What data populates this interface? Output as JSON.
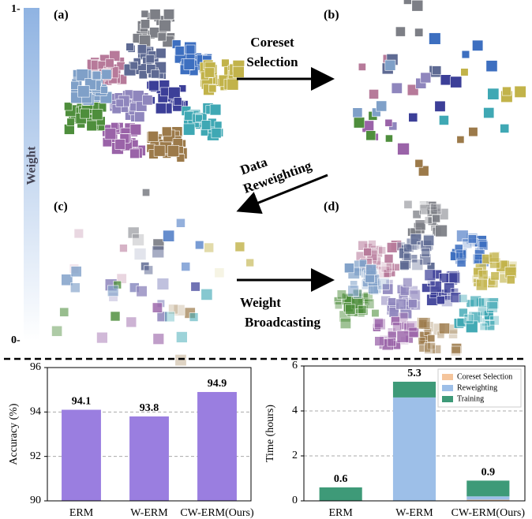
{
  "diagram": {
    "panels": [
      "(a)",
      "(b)",
      "(c)",
      "(d)"
    ],
    "weight_axis": {
      "label": "Weight",
      "top": "1-",
      "bottom": "0-"
    },
    "arrows": [
      {
        "lines": [
          "Coreset",
          "Selection"
        ]
      },
      {
        "lines": [
          "Data",
          "Reweighting"
        ]
      },
      {
        "lines": [
          "Weight",
          "Broadcasting"
        ]
      }
    ]
  },
  "chart_data": [
    {
      "type": "bar",
      "ylabel": "Accuracy (%)",
      "categories": [
        "ERM",
        "W-ERM",
        "CW-ERM(Ours)"
      ],
      "values": [
        94.1,
        93.8,
        94.9
      ],
      "color": "#9a7ee0",
      "ylim": [
        90,
        96
      ],
      "yticks": [
        90,
        92,
        94,
        96
      ],
      "grid": true
    },
    {
      "type": "stacked_bar",
      "ylabel": "Time (hours)",
      "categories": [
        "ERM",
        "W-ERM",
        "CW-ERM(Ours)"
      ],
      "series": [
        {
          "name": "Coreset Selection",
          "color": "#f5c59c",
          "values": [
            0,
            0,
            0.05
          ]
        },
        {
          "name": "Reweighting",
          "color": "#9dbfe8",
          "values": [
            0,
            4.6,
            0.15
          ]
        },
        {
          "name": "Training",
          "color": "#3e9a78",
          "values": [
            0.6,
            0.7,
            0.7
          ]
        }
      ],
      "total_labels": [
        "0.6",
        "5.3",
        "0.9"
      ],
      "ylim": [
        0,
        6
      ],
      "yticks": [
        0,
        2,
        4,
        6
      ],
      "grid": true,
      "legend": "upper right"
    }
  ]
}
